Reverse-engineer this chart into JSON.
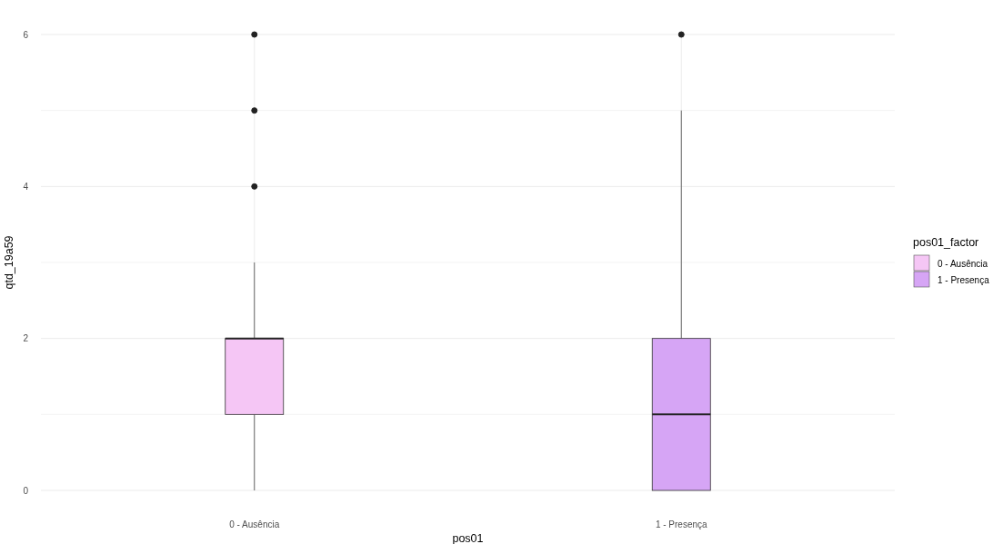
{
  "chart_data": {
    "type": "box",
    "xlabel": "pos01",
    "ylabel": "qtd_19a59",
    "legend_title": "pos01_factor",
    "categories": [
      "0 - Ausência",
      "1 - Presença"
    ],
    "ylim": [
      0,
      6
    ],
    "yticks": [
      0,
      2,
      4,
      6
    ],
    "grid": true,
    "legend": "right",
    "series": [
      {
        "name": "0 - Ausência",
        "color": "#f5c6f5",
        "boxes": [
          {
            "low": 0,
            "q1": 1,
            "median": 2,
            "q3": 2,
            "high": 3,
            "outliers": [
              4,
              5,
              6
            ]
          },
          null
        ]
      },
      {
        "name": "1 - Presença",
        "color": "#d6a5f5",
        "boxes": [
          null,
          {
            "low": 0,
            "q1": 0,
            "median": 1,
            "q3": 2,
            "high": 5,
            "outliers": [
              6
            ]
          }
        ]
      }
    ]
  }
}
